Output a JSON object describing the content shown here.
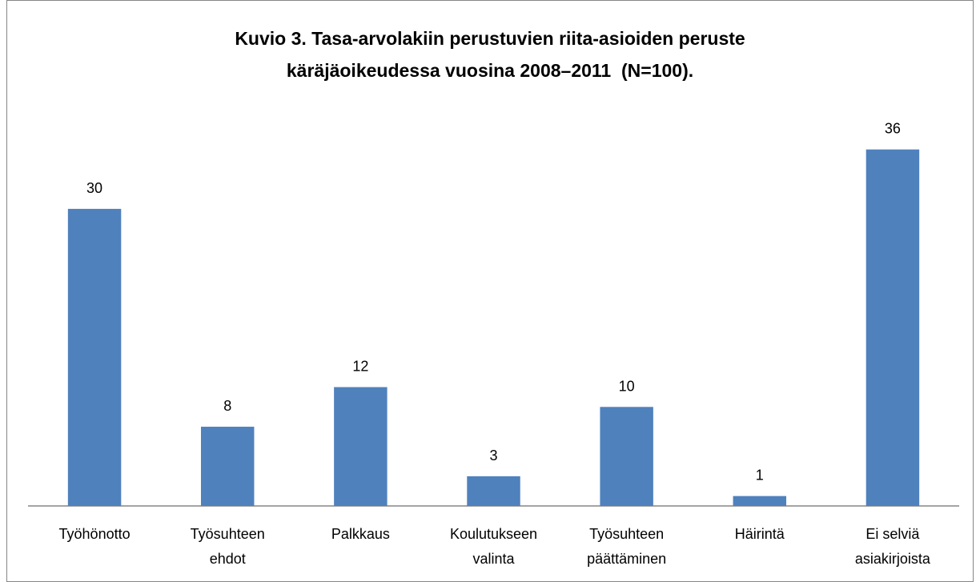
{
  "chart_data": {
    "type": "bar",
    "title": "Kuvio 3. Tasa-arvolakiin perustuvien riita-asioiden peruste\nkäräjäoikeudessa vuosina 2008–2011  (N=100).",
    "categories": [
      "Työhönotto",
      "Työsuhteen\nehdot",
      "Palkkaus",
      "Koulutukseen\nvalinta",
      "Työsuhteen\npäättäminen",
      "Häirintä",
      "Ei selviä\nasiakirjoista"
    ],
    "values": [
      30,
      8,
      12,
      3,
      10,
      1,
      36
    ],
    "color": "#4f81bd"
  }
}
